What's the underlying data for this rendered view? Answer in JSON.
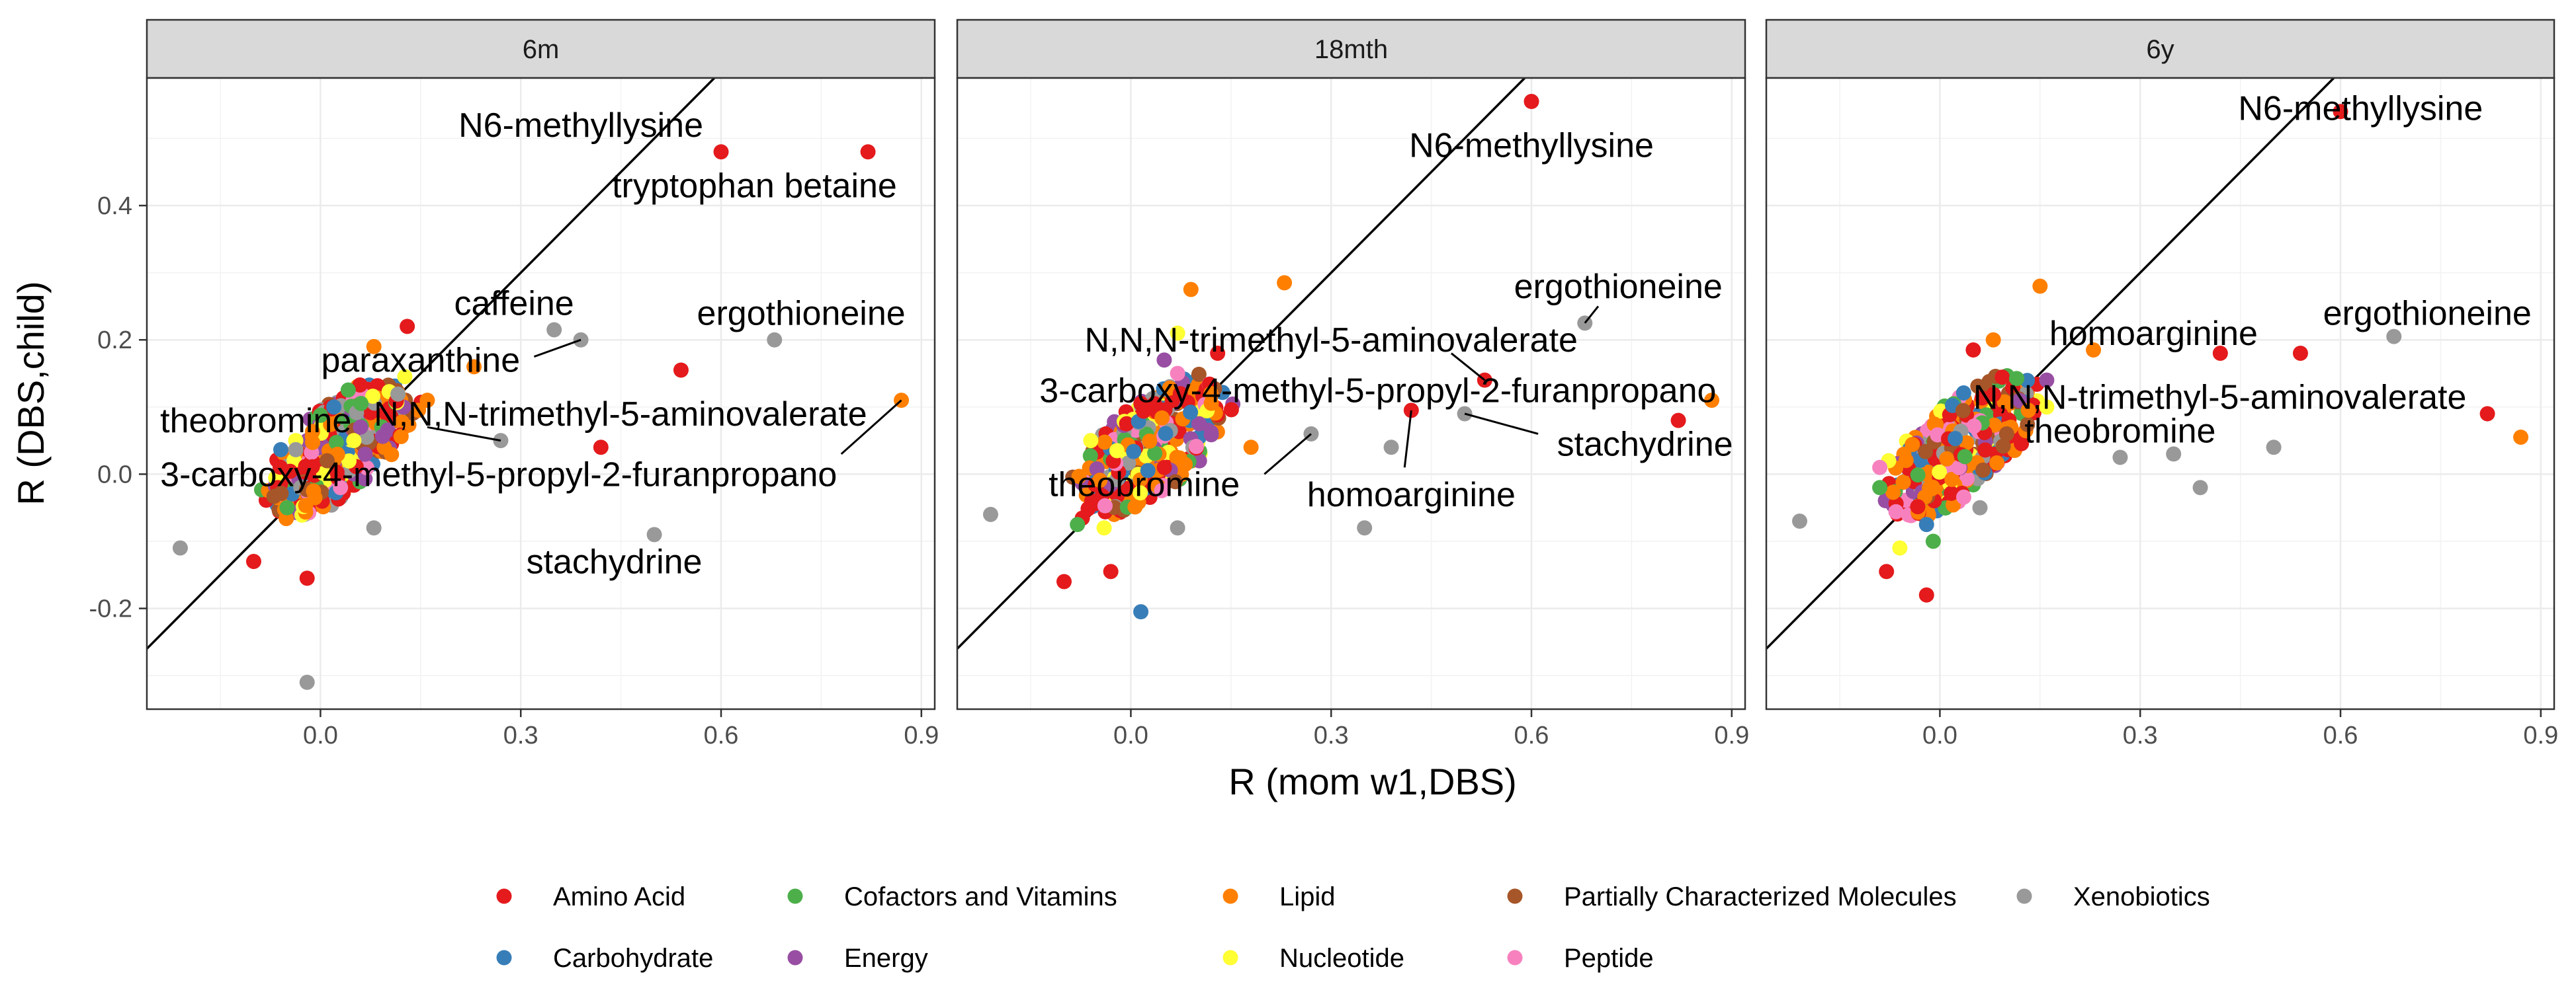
{
  "chart_data": {
    "type": "scatter",
    "facet_by": "timepoint",
    "xlabel": "R (mom w1,DBS)",
    "ylabel": "R (DBS,child)",
    "xlim": [
      -0.26,
      0.92
    ],
    "ylim": [
      -0.35,
      0.59
    ],
    "x_ticks": [
      0.0,
      0.3,
      0.6,
      0.9
    ],
    "x_tick_labels": [
      "0.0",
      "0.3",
      "0.6",
      "0.9"
    ],
    "y_ticks": [
      -0.2,
      0.0,
      0.2,
      0.4
    ],
    "y_tick_labels": [
      "-0.2",
      "0.0",
      "0.2",
      "0.4"
    ],
    "reference_line": "y = x",
    "grid": true,
    "legend": {
      "position": "bottom",
      "entries": [
        {
          "label": "Amino Acid",
          "color": "#E41A1C"
        },
        {
          "label": "Carbohydrate",
          "color": "#377EB8"
        },
        {
          "label": "Cofactors and Vitamins",
          "color": "#4DAF4A"
        },
        {
          "label": "Energy",
          "color": "#984EA3"
        },
        {
          "label": "Lipid",
          "color": "#FF7F00"
        },
        {
          "label": "Nucleotide",
          "color": "#FFFF33"
        },
        {
          "label": "Partially Characterized Molecules",
          "color": "#A65628"
        },
        {
          "label": "Peptide",
          "color": "#F781BF"
        },
        {
          "label": "Xenobiotics",
          "color": "#999999"
        }
      ]
    },
    "panels": [
      {
        "title": "6m",
        "points": [
          {
            "x": 0.6,
            "y": 0.48,
            "cat": "Amino Acid"
          },
          {
            "x": 0.82,
            "y": 0.48,
            "cat": "Amino Acid"
          },
          {
            "x": 0.35,
            "y": 0.215,
            "cat": "Xenobiotics"
          },
          {
            "x": 0.39,
            "y": 0.2,
            "cat": "Xenobiotics"
          },
          {
            "x": 0.68,
            "y": 0.2,
            "cat": "Xenobiotics"
          },
          {
            "x": 0.54,
            "y": 0.155,
            "cat": "Amino Acid"
          },
          {
            "x": 0.87,
            "y": 0.11,
            "cat": "Lipid"
          },
          {
            "x": 0.27,
            "y": 0.05,
            "cat": "Xenobiotics"
          },
          {
            "x": 0.42,
            "y": 0.04,
            "cat": "Amino Acid"
          },
          {
            "x": 0.5,
            "y": -0.09,
            "cat": "Xenobiotics"
          },
          {
            "x": -0.21,
            "y": -0.11,
            "cat": "Xenobiotics"
          },
          {
            "x": -0.1,
            "y": -0.13,
            "cat": "Amino Acid"
          },
          {
            "x": -0.02,
            "y": -0.155,
            "cat": "Amino Acid"
          },
          {
            "x": -0.02,
            "y": -0.31,
            "cat": "Xenobiotics"
          },
          {
            "x": 0.13,
            "y": 0.22,
            "cat": "Amino Acid"
          },
          {
            "x": 0.08,
            "y": 0.19,
            "cat": "Lipid"
          },
          {
            "x": 0.23,
            "y": 0.16,
            "cat": "Lipid"
          },
          {
            "x": 0.16,
            "y": 0.11,
            "cat": "Lipid"
          },
          {
            "x": 0.02,
            "y": 0.1,
            "cat": "Carbohydrate"
          },
          {
            "x": 0.05,
            "y": 0.05,
            "cat": "Nucleotide"
          },
          {
            "x": 0.03,
            "y": -0.02,
            "cat": "Peptide"
          },
          {
            "x": -0.05,
            "y": -0.05,
            "cat": "Cofactors and Vitamins"
          },
          {
            "x": 0.06,
            "y": 0.07,
            "cat": "Energy"
          },
          {
            "x": 0.08,
            "y": -0.08,
            "cat": "Xenobiotics"
          },
          {
            "x": 0.01,
            "y": 0.02,
            "cat": "Partially Characterized Molecules"
          }
        ],
        "labels": [
          {
            "text": "N6-methyllysine",
            "tx": 0.39,
            "ty": 0.52,
            "anchor": "middle",
            "px": 0.6,
            "py": 0.48,
            "line": false
          },
          {
            "text": "tryptophan betaine",
            "tx": 0.65,
            "ty": 0.43,
            "anchor": "middle",
            "px": 0.82,
            "py": 0.48,
            "line": false
          },
          {
            "text": "caffeine",
            "tx": 0.29,
            "ty": 0.255,
            "anchor": "middle",
            "px": 0.35,
            "py": 0.215,
            "line": false
          },
          {
            "text": "ergothioneine",
            "tx": 0.72,
            "ty": 0.24,
            "anchor": "middle",
            "px": 0.68,
            "py": 0.2,
            "line": false
          },
          {
            "text": "paraxanthine",
            "tx": 0.15,
            "ty": 0.17,
            "anchor": "middle",
            "px": 0.39,
            "py": 0.2,
            "lx": 0.32,
            "ly": 0.175,
            "line": true
          },
          {
            "text": "theobromine",
            "tx": -0.24,
            "ty": 0.08,
            "anchor": "start",
            "px": 0.0,
            "py": 0.03,
            "line": false
          },
          {
            "text": "N,N,N-trimethyl-5-aminovalerate",
            "tx": 0.08,
            "ty": 0.09,
            "anchor": "start",
            "px": 0.27,
            "py": 0.05,
            "lx": 0.16,
            "ly": 0.07,
            "line": true
          },
          {
            "text": "3-carboxy-4-methyl-5-propyl-2-furanpropano",
            "tx": -0.24,
            "ty": 0.0,
            "anchor": "start",
            "px": 0.87,
            "py": 0.11,
            "lx": 0.78,
            "ly": 0.03,
            "line": true
          },
          {
            "text": "stachydrine",
            "tx": 0.44,
            "ty": -0.13,
            "anchor": "middle",
            "px": 0.5,
            "py": -0.09,
            "line": false
          }
        ]
      },
      {
        "title": "18mth",
        "points": [
          {
            "x": 0.6,
            "y": 0.555,
            "cat": "Amino Acid"
          },
          {
            "x": 0.68,
            "y": 0.225,
            "cat": "Xenobiotics"
          },
          {
            "x": 0.39,
            "y": 0.04,
            "cat": "Xenobiotics"
          },
          {
            "x": 0.53,
            "y": 0.14,
            "cat": "Amino Acid"
          },
          {
            "x": 0.42,
            "y": 0.095,
            "cat": "Amino Acid"
          },
          {
            "x": 0.5,
            "y": 0.09,
            "cat": "Xenobiotics"
          },
          {
            "x": 0.82,
            "y": 0.08,
            "cat": "Amino Acid"
          },
          {
            "x": 0.87,
            "y": 0.11,
            "cat": "Lipid"
          },
          {
            "x": 0.27,
            "y": 0.06,
            "cat": "Xenobiotics"
          },
          {
            "x": 0.35,
            "y": -0.08,
            "cat": "Xenobiotics"
          },
          {
            "x": 0.23,
            "y": 0.285,
            "cat": "Lipid"
          },
          {
            "x": -0.21,
            "y": -0.06,
            "cat": "Xenobiotics"
          },
          {
            "x": -0.1,
            "y": -0.16,
            "cat": "Amino Acid"
          },
          {
            "x": -0.03,
            "y": -0.145,
            "cat": "Amino Acid"
          },
          {
            "x": 0.015,
            "y": -0.205,
            "cat": "Carbohydrate"
          },
          {
            "x": 0.09,
            "y": 0.275,
            "cat": "Lipid"
          },
          {
            "x": 0.07,
            "y": 0.21,
            "cat": "Nucleotide"
          },
          {
            "x": 0.13,
            "y": 0.18,
            "cat": "Amino Acid"
          },
          {
            "x": 0.05,
            "y": 0.17,
            "cat": "Energy"
          },
          {
            "x": 0.07,
            "y": 0.15,
            "cat": "Peptide"
          },
          {
            "x": -0.08,
            "y": -0.075,
            "cat": "Cofactors and Vitamins"
          },
          {
            "x": -0.06,
            "y": 0.05,
            "cat": "Nucleotide"
          },
          {
            "x": -0.04,
            "y": -0.08,
            "cat": "Nucleotide"
          },
          {
            "x": 0.07,
            "y": -0.08,
            "cat": "Xenobiotics"
          },
          {
            "x": 0.12,
            "y": 0.12,
            "cat": "Lipid"
          },
          {
            "x": 0.18,
            "y": 0.04,
            "cat": "Lipid"
          }
        ],
        "labels": [
          {
            "text": "N6-methyllysine",
            "tx": 0.6,
            "ty": 0.49,
            "anchor": "middle",
            "px": 0.6,
            "py": 0.555,
            "line": false
          },
          {
            "text": "ergothioneine",
            "tx": 0.73,
            "ty": 0.28,
            "anchor": "middle",
            "px": 0.68,
            "py": 0.225,
            "lx": 0.7,
            "ly": 0.25,
            "line": true
          },
          {
            "text": "N,N,N-trimethyl-5-aminovalerate",
            "tx": 0.3,
            "ty": 0.2,
            "anchor": "middle",
            "px": 0.53,
            "py": 0.14,
            "lx": 0.48,
            "ly": 0.18,
            "line": true
          },
          {
            "text": "3-carboxy-4-methyl-5-propyl-2-furanpropano",
            "tx": 0.37,
            "ty": 0.125,
            "anchor": "middle",
            "px": 0.42,
            "py": 0.095,
            "line": false
          },
          {
            "text": "stachydrine",
            "tx": 0.77,
            "ty": 0.045,
            "anchor": "middle",
            "px": 0.5,
            "py": 0.09,
            "lx": 0.61,
            "ly": 0.06,
            "line": true
          },
          {
            "text": "theobromine",
            "tx": 0.02,
            "ty": -0.015,
            "anchor": "middle",
            "px": 0.27,
            "py": 0.06,
            "lx": 0.2,
            "ly": 0.0,
            "line": true
          },
          {
            "text": "homoarginine",
            "tx": 0.42,
            "ty": -0.03,
            "anchor": "middle",
            "px": 0.42,
            "py": 0.095,
            "lx": 0.41,
            "ly": 0.01,
            "line": true
          }
        ]
      },
      {
        "title": "6y",
        "points": [
          {
            "x": 0.6,
            "y": 0.54,
            "cat": "Amino Acid"
          },
          {
            "x": 0.68,
            "y": 0.205,
            "cat": "Xenobiotics"
          },
          {
            "x": 0.42,
            "y": 0.18,
            "cat": "Amino Acid"
          },
          {
            "x": 0.54,
            "y": 0.18,
            "cat": "Amino Acid"
          },
          {
            "x": 0.82,
            "y": 0.09,
            "cat": "Amino Acid"
          },
          {
            "x": 0.87,
            "y": 0.055,
            "cat": "Lipid"
          },
          {
            "x": 0.27,
            "y": 0.025,
            "cat": "Xenobiotics"
          },
          {
            "x": 0.35,
            "y": 0.03,
            "cat": "Xenobiotics"
          },
          {
            "x": 0.5,
            "y": 0.04,
            "cat": "Xenobiotics"
          },
          {
            "x": 0.39,
            "y": -0.02,
            "cat": "Xenobiotics"
          },
          {
            "x": 0.15,
            "y": 0.28,
            "cat": "Lipid"
          },
          {
            "x": 0.23,
            "y": 0.185,
            "cat": "Lipid"
          },
          {
            "x": 0.16,
            "y": 0.14,
            "cat": "Energy"
          },
          {
            "x": 0.16,
            "y": 0.1,
            "cat": "Nucleotide"
          },
          {
            "x": -0.21,
            "y": -0.07,
            "cat": "Xenobiotics"
          },
          {
            "x": -0.08,
            "y": -0.145,
            "cat": "Amino Acid"
          },
          {
            "x": -0.02,
            "y": -0.18,
            "cat": "Amino Acid"
          },
          {
            "x": -0.06,
            "y": -0.11,
            "cat": "Nucleotide"
          },
          {
            "x": -0.02,
            "y": -0.075,
            "cat": "Carbohydrate"
          },
          {
            "x": -0.01,
            "y": -0.1,
            "cat": "Cofactors and Vitamins"
          },
          {
            "x": -0.09,
            "y": -0.02,
            "cat": "Cofactors and Vitamins"
          },
          {
            "x": -0.09,
            "y": 0.01,
            "cat": "Peptide"
          },
          {
            "x": 0.08,
            "y": 0.2,
            "cat": "Lipid"
          },
          {
            "x": 0.05,
            "y": 0.185,
            "cat": "Amino Acid"
          },
          {
            "x": 0.1,
            "y": 0.06,
            "cat": "Partially Characterized Molecules"
          },
          {
            "x": 0.06,
            "y": -0.05,
            "cat": "Xenobiotics"
          }
        ],
        "labels": [
          {
            "text": "N6-methyllysine",
            "tx": 0.63,
            "ty": 0.545,
            "anchor": "middle",
            "px": 0.6,
            "py": 0.54,
            "line": false
          },
          {
            "text": "homoarginine",
            "tx": 0.32,
            "ty": 0.21,
            "anchor": "middle",
            "px": 0.42,
            "py": 0.18,
            "line": false
          },
          {
            "text": "ergothioneine",
            "tx": 0.73,
            "ty": 0.24,
            "anchor": "middle",
            "px": 0.68,
            "py": 0.205,
            "line": false
          },
          {
            "text": "N,N,N-trimethyl-5-aminovalerate",
            "tx": 0.05,
            "ty": 0.115,
            "anchor": "start",
            "px": 0.82,
            "py": 0.09,
            "line": false
          },
          {
            "text": "theobromine",
            "tx": 0.27,
            "ty": 0.065,
            "anchor": "middle",
            "px": 0.27,
            "py": 0.025,
            "line": false
          }
        ]
      }
    ]
  }
}
